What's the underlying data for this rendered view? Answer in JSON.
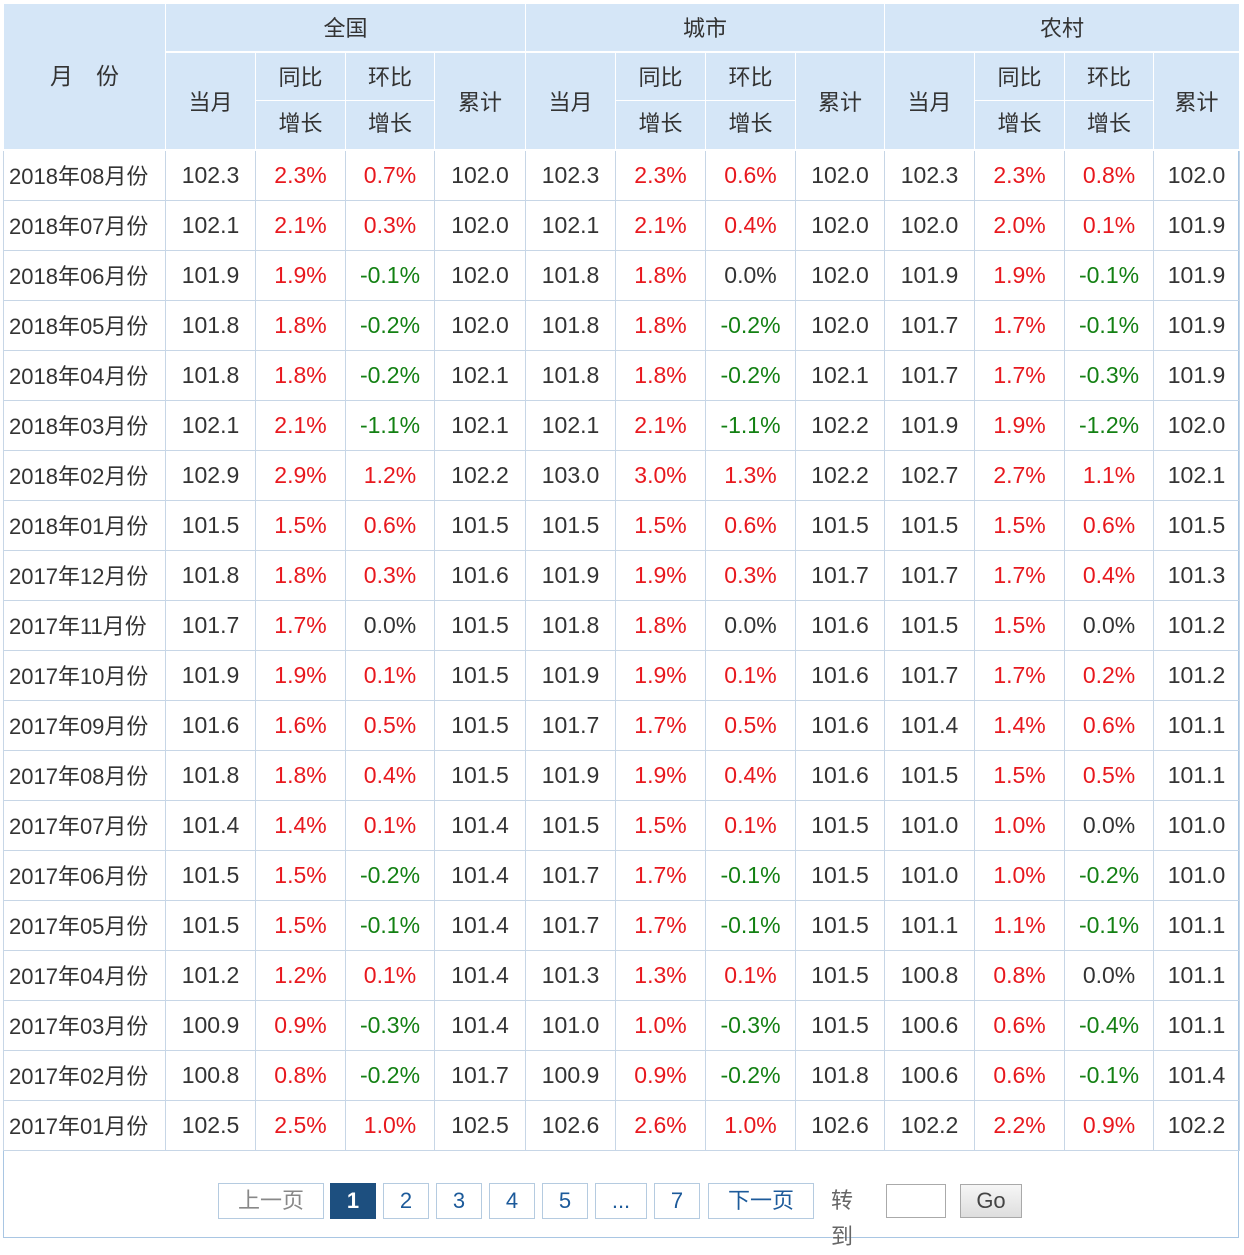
{
  "header": {
    "month_label": "月　份",
    "groups": [
      "全国",
      "城市",
      "农村"
    ],
    "sub_current": "当月",
    "sub_yoy_1": "同比",
    "sub_yoy_2": "增长",
    "sub_mom_1": "环比",
    "sub_mom_2": "增长",
    "sub_cum": "累计"
  },
  "rows": [
    {
      "month": "2018年08月份",
      "v": [
        "102.3",
        "2.3%",
        "0.7%",
        "102.0",
        "102.3",
        "2.3%",
        "0.6%",
        "102.0",
        "102.3",
        "2.3%",
        "0.8%",
        "102.0"
      ]
    },
    {
      "month": "2018年07月份",
      "v": [
        "102.1",
        "2.1%",
        "0.3%",
        "102.0",
        "102.1",
        "2.1%",
        "0.4%",
        "102.0",
        "102.0",
        "2.0%",
        "0.1%",
        "101.9"
      ]
    },
    {
      "month": "2018年06月份",
      "v": [
        "101.9",
        "1.9%",
        "-0.1%",
        "102.0",
        "101.8",
        "1.8%",
        "0.0%",
        "102.0",
        "101.9",
        "1.9%",
        "-0.1%",
        "101.9"
      ]
    },
    {
      "month": "2018年05月份",
      "v": [
        "101.8",
        "1.8%",
        "-0.2%",
        "102.0",
        "101.8",
        "1.8%",
        "-0.2%",
        "102.0",
        "101.7",
        "1.7%",
        "-0.1%",
        "101.9"
      ]
    },
    {
      "month": "2018年04月份",
      "v": [
        "101.8",
        "1.8%",
        "-0.2%",
        "102.1",
        "101.8",
        "1.8%",
        "-0.2%",
        "102.1",
        "101.7",
        "1.7%",
        "-0.3%",
        "101.9"
      ]
    },
    {
      "month": "2018年03月份",
      "v": [
        "102.1",
        "2.1%",
        "-1.1%",
        "102.1",
        "102.1",
        "2.1%",
        "-1.1%",
        "102.2",
        "101.9",
        "1.9%",
        "-1.2%",
        "102.0"
      ]
    },
    {
      "month": "2018年02月份",
      "v": [
        "102.9",
        "2.9%",
        "1.2%",
        "102.2",
        "103.0",
        "3.0%",
        "1.3%",
        "102.2",
        "102.7",
        "2.7%",
        "1.1%",
        "102.1"
      ]
    },
    {
      "month": "2018年01月份",
      "v": [
        "101.5",
        "1.5%",
        "0.6%",
        "101.5",
        "101.5",
        "1.5%",
        "0.6%",
        "101.5",
        "101.5",
        "1.5%",
        "0.6%",
        "101.5"
      ]
    },
    {
      "month": "2017年12月份",
      "v": [
        "101.8",
        "1.8%",
        "0.3%",
        "101.6",
        "101.9",
        "1.9%",
        "0.3%",
        "101.7",
        "101.7",
        "1.7%",
        "0.4%",
        "101.3"
      ]
    },
    {
      "month": "2017年11月份",
      "v": [
        "101.7",
        "1.7%",
        "0.0%",
        "101.5",
        "101.8",
        "1.8%",
        "0.0%",
        "101.6",
        "101.5",
        "1.5%",
        "0.0%",
        "101.2"
      ]
    },
    {
      "month": "2017年10月份",
      "v": [
        "101.9",
        "1.9%",
        "0.1%",
        "101.5",
        "101.9",
        "1.9%",
        "0.1%",
        "101.6",
        "101.7",
        "1.7%",
        "0.2%",
        "101.2"
      ]
    },
    {
      "month": "2017年09月份",
      "v": [
        "101.6",
        "1.6%",
        "0.5%",
        "101.5",
        "101.7",
        "1.7%",
        "0.5%",
        "101.6",
        "101.4",
        "1.4%",
        "0.6%",
        "101.1"
      ]
    },
    {
      "month": "2017年08月份",
      "v": [
        "101.8",
        "1.8%",
        "0.4%",
        "101.5",
        "101.9",
        "1.9%",
        "0.4%",
        "101.6",
        "101.5",
        "1.5%",
        "0.5%",
        "101.1"
      ]
    },
    {
      "month": "2017年07月份",
      "v": [
        "101.4",
        "1.4%",
        "0.1%",
        "101.4",
        "101.5",
        "1.5%",
        "0.1%",
        "101.5",
        "101.0",
        "1.0%",
        "0.0%",
        "101.0"
      ]
    },
    {
      "month": "2017年06月份",
      "v": [
        "101.5",
        "1.5%",
        "-0.2%",
        "101.4",
        "101.7",
        "1.7%",
        "-0.1%",
        "101.5",
        "101.0",
        "1.0%",
        "-0.2%",
        "101.0"
      ]
    },
    {
      "month": "2017年05月份",
      "v": [
        "101.5",
        "1.5%",
        "-0.1%",
        "101.4",
        "101.7",
        "1.7%",
        "-0.1%",
        "101.5",
        "101.1",
        "1.1%",
        "-0.1%",
        "101.1"
      ]
    },
    {
      "month": "2017年04月份",
      "v": [
        "101.2",
        "1.2%",
        "0.1%",
        "101.4",
        "101.3",
        "1.3%",
        "0.1%",
        "101.5",
        "100.8",
        "0.8%",
        "0.0%",
        "101.1"
      ]
    },
    {
      "month": "2017年03月份",
      "v": [
        "100.9",
        "0.9%",
        "-0.3%",
        "101.4",
        "101.0",
        "1.0%",
        "-0.3%",
        "101.5",
        "100.6",
        "0.6%",
        "-0.4%",
        "101.1"
      ]
    },
    {
      "month": "2017年02月份",
      "v": [
        "100.8",
        "0.8%",
        "-0.2%",
        "101.7",
        "100.9",
        "0.9%",
        "-0.2%",
        "101.8",
        "100.6",
        "0.6%",
        "-0.1%",
        "101.4"
      ]
    },
    {
      "month": "2017年01月份",
      "v": [
        "102.5",
        "2.5%",
        "1.0%",
        "102.5",
        "102.6",
        "2.6%",
        "1.0%",
        "102.6",
        "102.2",
        "2.2%",
        "0.9%",
        "102.2"
      ]
    }
  ],
  "pagination": {
    "prev": "上一页",
    "pages": [
      "1",
      "2",
      "3",
      "4",
      "5",
      "...",
      "7"
    ],
    "current": "1",
    "next": "下一页",
    "jump_label": "转到",
    "jump_value": "",
    "go": "Go"
  },
  "colors": {
    "header_bg": "#d5e6f7",
    "positive": "#e8181e",
    "negative": "#138013",
    "neutral": "#333333",
    "active_page": "#1d4f7f"
  }
}
